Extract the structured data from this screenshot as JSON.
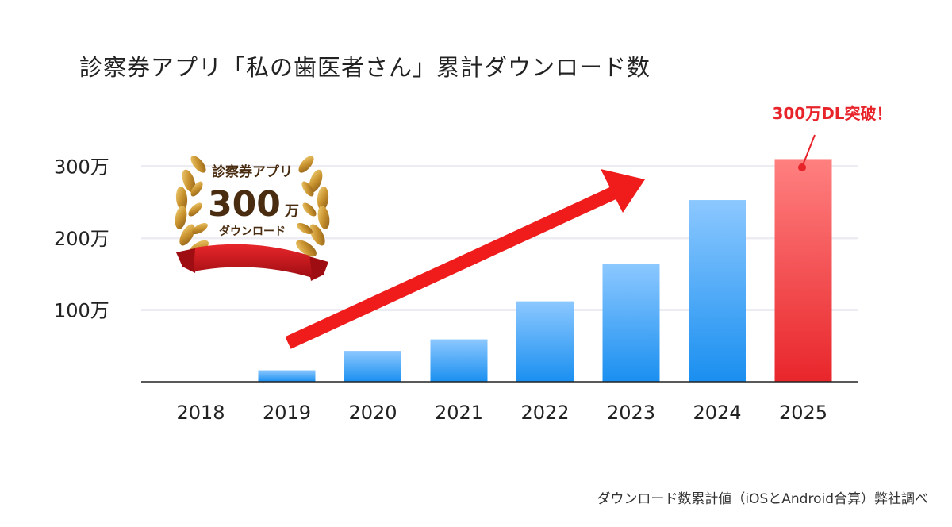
{
  "title": "診察券アプリ「私の歯医者さん」累計ダウンロード数",
  "footnote": "ダウンロード数累計値（iOSとAndroid合算）弊社調べ",
  "badge": {
    "line1": "診察券アプリ",
    "number": "300",
    "unit": "万",
    "line3": "ダウンロード"
  },
  "callout": "300万DL突破！",
  "colors": {
    "bar_top": "#8cc8ff",
    "bar_bottom": "#1a8ff0",
    "highlight_top": "#ff8080",
    "highlight_bottom": "#e8262b",
    "arrow": "#f01c1c",
    "callout": "#e8242b",
    "gold": "#c9932e",
    "ribbon": "#c8141c"
  },
  "chart_data": {
    "type": "bar",
    "categories": [
      "2018",
      "2019",
      "2020",
      "2021",
      "2022",
      "2023",
      "2024",
      "2025"
    ],
    "values": [
      0,
      16,
      43,
      59,
      112,
      164,
      253,
      310
    ],
    "unit": "万",
    "ylim": [
      0,
      330
    ],
    "yticks": [
      {
        "value": 100,
        "label": "100万"
      },
      {
        "value": 200,
        "label": "200万"
      },
      {
        "value": 300,
        "label": "300万"
      }
    ],
    "highlight_category": "2025",
    "grid": true,
    "trend_arrow": true
  }
}
